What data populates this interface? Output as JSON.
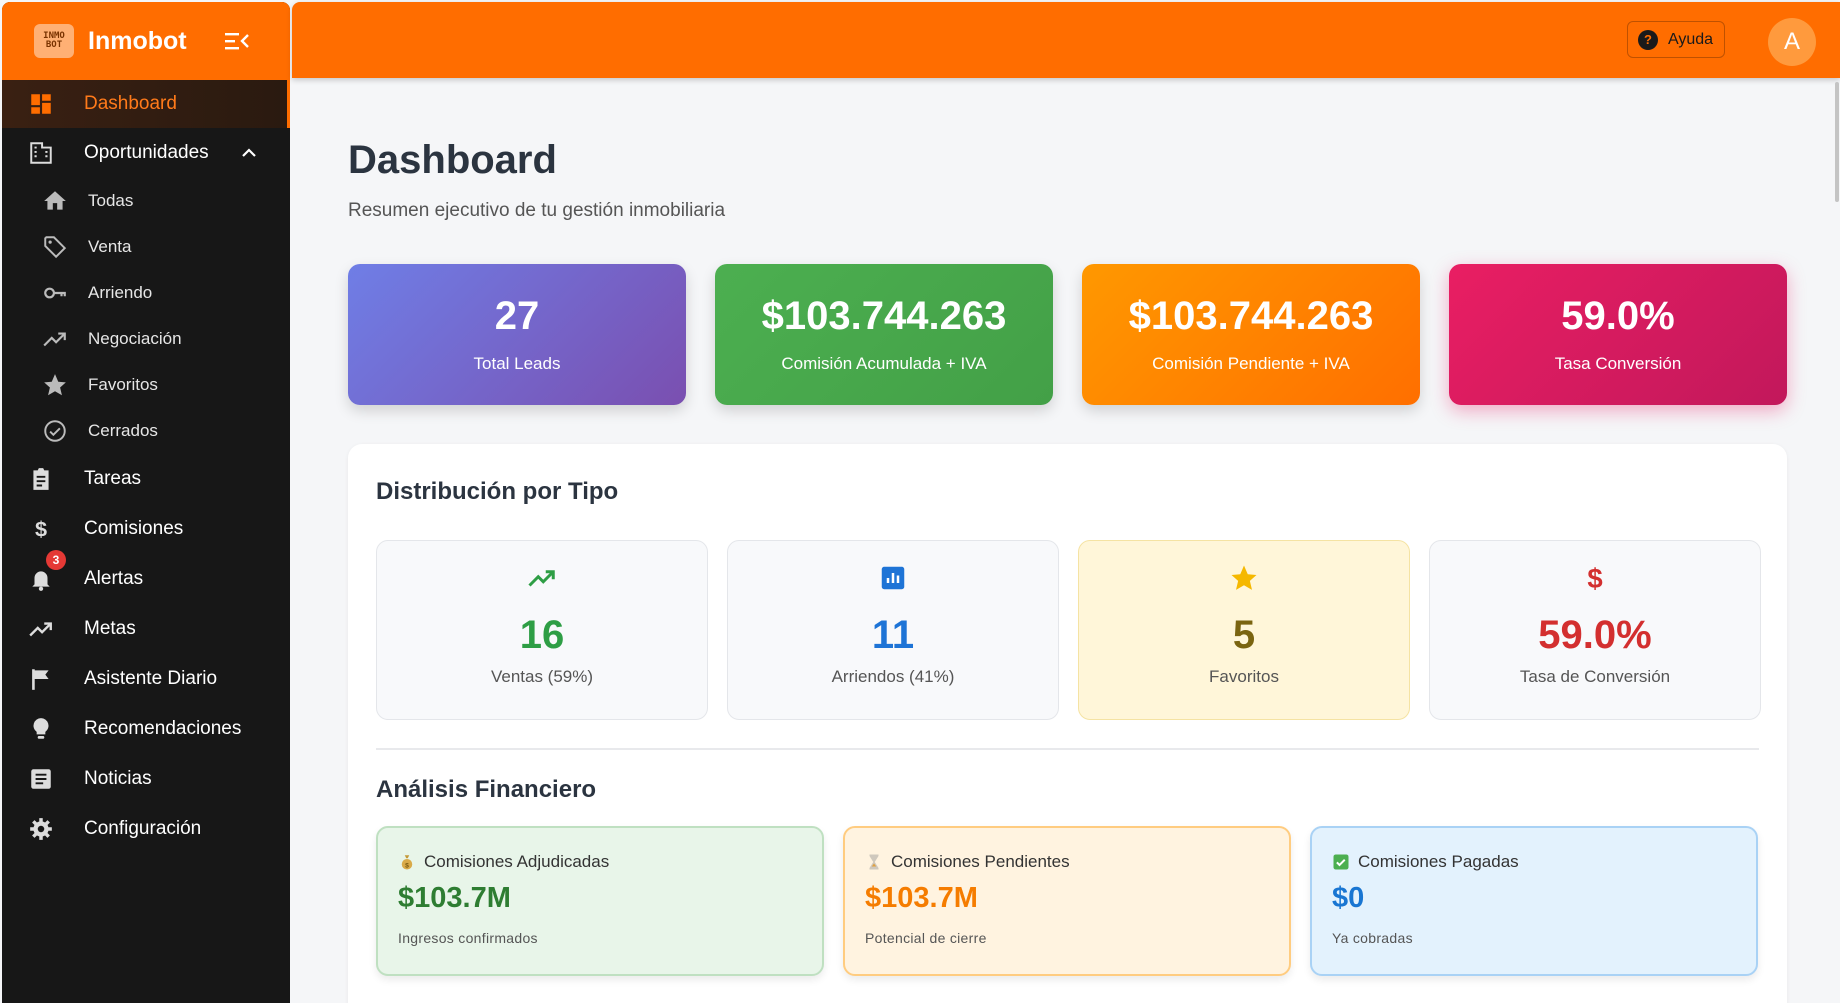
{
  "sidebar": {
    "logo_text": "INMO BOT",
    "brand": "Inmobot",
    "items": [
      {
        "label": "Dashboard"
      },
      {
        "label": "Oportunidades"
      },
      {
        "label": "Todas"
      },
      {
        "label": "Venta"
      },
      {
        "label": "Arriendo"
      },
      {
        "label": "Negociación"
      },
      {
        "label": "Favoritos"
      },
      {
        "label": "Cerrados"
      },
      {
        "label": "Tareas"
      },
      {
        "label": "Comisiones"
      },
      {
        "label": "Alertas",
        "badge": "3"
      },
      {
        "label": "Metas"
      },
      {
        "label": "Asistente Diario"
      },
      {
        "label": "Recomendaciones"
      },
      {
        "label": "Noticias"
      },
      {
        "label": "Configuración"
      }
    ]
  },
  "topbar": {
    "help_label": "Ayuda",
    "avatar_initial": "A"
  },
  "page": {
    "title": "Dashboard",
    "subtitle": "Resumen ejecutivo de tu gestión inmobiliaria"
  },
  "kpis": [
    {
      "value": "27",
      "label": "Total Leads"
    },
    {
      "value": "$103.744.263",
      "label": "Comisión Acumulada + IVA"
    },
    {
      "value": "$103.744.263",
      "label": "Comisión Pendiente + IVA"
    },
    {
      "value": "59.0%",
      "label": "Tasa Conversión"
    }
  ],
  "distribution": {
    "title": "Distribución por Tipo",
    "cards": [
      {
        "value": "16",
        "label": "Ventas (59%)",
        "color": "#2e9e45"
      },
      {
        "value": "11",
        "label": "Arriendos (41%)",
        "color": "#1e74d6"
      },
      {
        "value": "5",
        "label": "Favoritos",
        "color": "#7a6410"
      },
      {
        "value": "59.0%",
        "label": "Tasa de Conversión",
        "color": "#d32f2f"
      }
    ]
  },
  "financial": {
    "title": "Análisis Financiero",
    "cards": [
      {
        "title": "Comisiones Adjudicadas",
        "value": "$103.7M",
        "sub": "Ingresos confirmados",
        "color": "#2e7d32"
      },
      {
        "title": "Comisiones Pendientes",
        "value": "$103.7M",
        "sub": "Potencial de cierre",
        "color": "#f57c00"
      },
      {
        "title": "Comisiones Pagadas",
        "value": "$0",
        "sub": "Ya cobradas",
        "color": "#1976d2"
      }
    ]
  },
  "colors": {
    "accent": "#ff6d00",
    "sidebar_bg": "#171717"
  }
}
